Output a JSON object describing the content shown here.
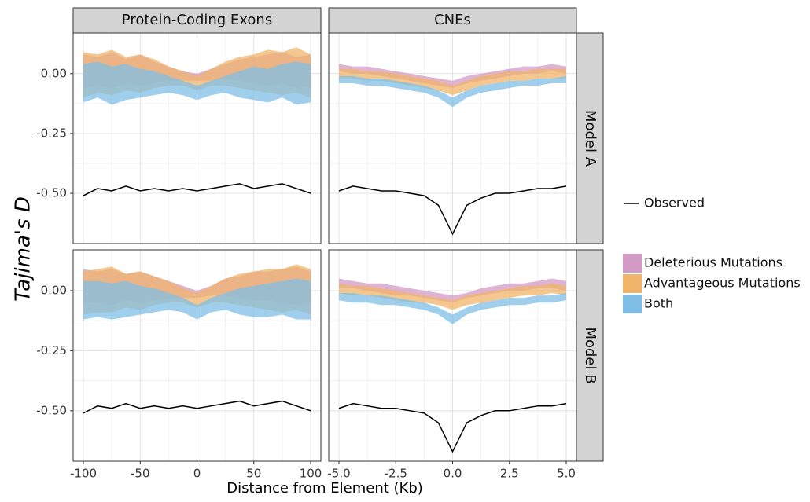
{
  "y_label": "Tajima's D",
  "x_label": "Distance from Element (Kb)",
  "facets": {
    "columns": [
      "Protein-Coding Exons",
      "CNEs"
    ],
    "rows": [
      "Model A",
      "Model B"
    ]
  },
  "legend": {
    "line": {
      "name": "Observed",
      "color": "#000000"
    },
    "fills": [
      {
        "name": "Deleterious Mutations",
        "color": "#d39ac6"
      },
      {
        "name": "Advantageous Mutations",
        "color": "#f0b46a"
      },
      {
        "name": "Both",
        "color": "#7fbfe6"
      }
    ]
  },
  "chart_data": [
    {
      "type": "area",
      "x": [
        -100,
        -87.5,
        -75,
        -62.5,
        -50,
        -37.5,
        -25,
        -12.5,
        0,
        12.5,
        25,
        37.5,
        50,
        62.5,
        75,
        87.5,
        100
      ],
      "xlim": [
        -109,
        109
      ],
      "ylim": [
        -0.71,
        0.17
      ],
      "xticks": [
        -100,
        -50,
        0,
        50,
        100
      ],
      "yticks": [
        {
          "value": 0,
          "label": "0.00"
        },
        {
          "value": -0.25,
          "label": "-0.25"
        },
        {
          "value": -0.5,
          "label": "-0.50"
        }
      ],
      "series": [
        {
          "color": "#d39ac6",
          "upper": [
            0.08,
            0.07,
            0.09,
            0.06,
            0.08,
            0.05,
            0.03,
            0.01,
            0.0,
            0.02,
            0.04,
            0.06,
            0.07,
            0.08,
            0.09,
            0.07,
            0.08
          ],
          "lower": [
            -0.06,
            -0.05,
            -0.06,
            -0.04,
            -0.05,
            -0.04,
            -0.03,
            -0.03,
            -0.03,
            -0.03,
            -0.02,
            -0.03,
            -0.04,
            -0.05,
            -0.04,
            -0.06,
            -0.05
          ]
        },
        {
          "color": "#f0b46a",
          "upper": [
            0.09,
            0.08,
            0.1,
            0.07,
            0.08,
            0.06,
            0.03,
            0.01,
            -0.01,
            0.02,
            0.05,
            0.07,
            0.08,
            0.1,
            0.09,
            0.11,
            0.08
          ],
          "lower": [
            -0.1,
            -0.08,
            -0.09,
            -0.07,
            -0.08,
            -0.06,
            -0.05,
            -0.05,
            -0.07,
            -0.05,
            -0.05,
            -0.06,
            -0.07,
            -0.08,
            -0.09,
            -0.08,
            -0.1
          ]
        },
        {
          "color": "#7fbfe6",
          "upper": [
            0.04,
            0.05,
            0.03,
            0.04,
            0.02,
            0.01,
            -0.01,
            -0.03,
            -0.05,
            -0.03,
            -0.01,
            0.01,
            0.03,
            0.02,
            0.04,
            0.05,
            0.04
          ],
          "lower": [
            -0.12,
            -0.1,
            -0.13,
            -0.11,
            -0.1,
            -0.09,
            -0.08,
            -0.09,
            -0.11,
            -0.09,
            -0.08,
            -0.1,
            -0.11,
            -0.12,
            -0.1,
            -0.13,
            -0.12
          ]
        }
      ],
      "observed": [
        -0.51,
        -0.48,
        -0.49,
        -0.47,
        -0.49,
        -0.48,
        -0.49,
        -0.48,
        -0.49,
        -0.48,
        -0.47,
        -0.46,
        -0.48,
        -0.47,
        -0.46,
        -0.48,
        -0.5
      ]
    },
    {
      "type": "area",
      "x": [
        -5,
        -4.375,
        -3.75,
        -3.125,
        -2.5,
        -1.875,
        -1.25,
        -0.625,
        0,
        0.625,
        1.25,
        1.875,
        2.5,
        3.125,
        3.75,
        4.375,
        5
      ],
      "xlim": [
        -5.45,
        5.45
      ],
      "ylim": [
        -0.71,
        0.17
      ],
      "xticks": [
        {
          "value": -5,
          "label": "-5.0"
        },
        {
          "value": -2.5,
          "label": "-2.5"
        },
        {
          "value": 0,
          "label": "0.0"
        },
        {
          "value": 2.5,
          "label": "2.5"
        },
        {
          "value": 5,
          "label": "5.0"
        }
      ],
      "yticks": [
        {
          "value": 0,
          "label": "0.00"
        },
        {
          "value": -0.25,
          "label": "-0.25"
        },
        {
          "value": -0.5,
          "label": "-0.50"
        }
      ],
      "series": [
        {
          "color": "#d39ac6",
          "upper": [
            0.04,
            0.03,
            0.03,
            0.02,
            0.01,
            0.0,
            -0.01,
            -0.02,
            -0.03,
            -0.01,
            0.0,
            0.01,
            0.02,
            0.03,
            0.03,
            0.04,
            0.03
          ],
          "lower": [
            0.01,
            0.0,
            0.0,
            -0.01,
            -0.02,
            -0.03,
            -0.04,
            -0.05,
            -0.06,
            -0.04,
            -0.03,
            -0.02,
            -0.01,
            0.0,
            0.0,
            0.01,
            0.0
          ]
        },
        {
          "color": "#f0b46a",
          "upper": [
            0.02,
            0.02,
            0.01,
            0.01,
            0.0,
            -0.01,
            -0.02,
            -0.03,
            -0.05,
            -0.03,
            -0.01,
            0.0,
            0.01,
            0.01,
            0.02,
            0.02,
            0.02
          ],
          "lower": [
            -0.02,
            -0.02,
            -0.03,
            -0.03,
            -0.04,
            -0.05,
            -0.06,
            -0.07,
            -0.09,
            -0.07,
            -0.05,
            -0.04,
            -0.03,
            -0.03,
            -0.02,
            -0.02,
            -0.02
          ]
        },
        {
          "color": "#7fbfe6",
          "upper": [
            -0.01,
            -0.01,
            -0.02,
            -0.02,
            -0.03,
            -0.04,
            -0.05,
            -0.07,
            -0.1,
            -0.07,
            -0.05,
            -0.04,
            -0.03,
            -0.03,
            -0.02,
            -0.02,
            -0.01
          ],
          "lower": [
            -0.04,
            -0.04,
            -0.05,
            -0.05,
            -0.06,
            -0.07,
            -0.08,
            -0.1,
            -0.14,
            -0.1,
            -0.08,
            -0.07,
            -0.06,
            -0.05,
            -0.05,
            -0.04,
            -0.04
          ]
        }
      ],
      "observed": [
        -0.49,
        -0.47,
        -0.48,
        -0.49,
        -0.49,
        -0.5,
        -0.51,
        -0.55,
        -0.67,
        -0.55,
        -0.52,
        -0.5,
        -0.5,
        -0.49,
        -0.48,
        -0.48,
        -0.47
      ]
    },
    {
      "type": "area",
      "x": [
        -100,
        -87.5,
        -75,
        -62.5,
        -50,
        -37.5,
        -25,
        -12.5,
        0,
        12.5,
        25,
        37.5,
        50,
        62.5,
        75,
        87.5,
        100
      ],
      "xlim": [
        -109,
        109
      ],
      "ylim": [
        -0.71,
        0.17
      ],
      "xticks": [
        -100,
        -50,
        0,
        50,
        100
      ],
      "yticks": [
        {
          "value": 0,
          "label": "0.00"
        },
        {
          "value": -0.25,
          "label": "-0.25"
        },
        {
          "value": -0.5,
          "label": "-0.50"
        }
      ],
      "series": [
        {
          "color": "#d39ac6",
          "upper": [
            0.09,
            0.08,
            0.09,
            0.07,
            0.08,
            0.06,
            0.04,
            0.02,
            0.0,
            0.02,
            0.05,
            0.06,
            0.08,
            0.08,
            0.09,
            0.1,
            0.08
          ],
          "lower": [
            -0.05,
            -0.05,
            -0.06,
            -0.04,
            -0.05,
            -0.04,
            -0.03,
            -0.03,
            -0.03,
            -0.02,
            -0.02,
            -0.03,
            -0.04,
            -0.04,
            -0.05,
            -0.06,
            -0.05
          ]
        },
        {
          "color": "#f0b46a",
          "upper": [
            0.08,
            0.09,
            0.1,
            0.07,
            0.08,
            0.06,
            0.04,
            0.01,
            -0.01,
            0.02,
            0.05,
            0.07,
            0.08,
            0.09,
            0.09,
            0.11,
            0.09
          ],
          "lower": [
            -0.1,
            -0.09,
            -0.09,
            -0.07,
            -0.08,
            -0.06,
            -0.05,
            -0.05,
            -0.07,
            -0.05,
            -0.05,
            -0.06,
            -0.07,
            -0.08,
            -0.09,
            -0.08,
            -0.1
          ]
        },
        {
          "color": "#7fbfe6",
          "upper": [
            0.04,
            0.04,
            0.03,
            0.04,
            0.02,
            0.01,
            -0.01,
            -0.03,
            -0.06,
            -0.03,
            -0.01,
            0.01,
            0.02,
            0.03,
            0.04,
            0.05,
            0.04
          ],
          "lower": [
            -0.12,
            -0.11,
            -0.12,
            -0.11,
            -0.1,
            -0.09,
            -0.08,
            -0.09,
            -0.12,
            -0.09,
            -0.08,
            -0.1,
            -0.11,
            -0.11,
            -0.1,
            -0.12,
            -0.12
          ]
        }
      ],
      "observed": [
        -0.51,
        -0.48,
        -0.49,
        -0.47,
        -0.49,
        -0.48,
        -0.49,
        -0.48,
        -0.49,
        -0.48,
        -0.47,
        -0.46,
        -0.48,
        -0.47,
        -0.46,
        -0.48,
        -0.5
      ]
    },
    {
      "type": "area",
      "x": [
        -5,
        -4.375,
        -3.75,
        -3.125,
        -2.5,
        -1.875,
        -1.25,
        -0.625,
        0,
        0.625,
        1.25,
        1.875,
        2.5,
        3.125,
        3.75,
        4.375,
        5
      ],
      "xlim": [
        -5.45,
        5.45
      ],
      "ylim": [
        -0.71,
        0.17
      ],
      "xticks": [
        {
          "value": -5,
          "label": "-5.0"
        },
        {
          "value": -2.5,
          "label": "-2.5"
        },
        {
          "value": 0,
          "label": "0.0"
        },
        {
          "value": 2.5,
          "label": "2.5"
        },
        {
          "value": 5,
          "label": "5.0"
        }
      ],
      "yticks": [
        {
          "value": 0,
          "label": "0.00"
        },
        {
          "value": -0.25,
          "label": "-0.25"
        },
        {
          "value": -0.5,
          "label": "-0.50"
        }
      ],
      "series": [
        {
          "color": "#d39ac6",
          "upper": [
            0.05,
            0.04,
            0.03,
            0.03,
            0.02,
            0.01,
            0.0,
            -0.01,
            -0.02,
            -0.01,
            0.01,
            0.02,
            0.03,
            0.03,
            0.04,
            0.05,
            0.04
          ],
          "lower": [
            0.01,
            0.01,
            0.0,
            -0.01,
            -0.02,
            -0.02,
            -0.03,
            -0.04,
            -0.05,
            -0.03,
            -0.02,
            -0.01,
            0.0,
            0.0,
            0.01,
            0.01,
            0.0
          ]
        },
        {
          "color": "#f0b46a",
          "upper": [
            0.03,
            0.02,
            0.02,
            0.01,
            0.0,
            -0.01,
            -0.02,
            -0.03,
            -0.04,
            -0.02,
            -0.01,
            0.0,
            0.01,
            0.02,
            0.02,
            0.03,
            0.02
          ],
          "lower": [
            -0.01,
            -0.02,
            -0.02,
            -0.03,
            -0.04,
            -0.05,
            -0.05,
            -0.06,
            -0.08,
            -0.06,
            -0.05,
            -0.04,
            -0.03,
            -0.02,
            -0.02,
            -0.01,
            -0.02
          ]
        },
        {
          "color": "#7fbfe6",
          "upper": [
            -0.01,
            -0.01,
            -0.02,
            -0.02,
            -0.03,
            -0.04,
            -0.05,
            -0.07,
            -0.1,
            -0.07,
            -0.05,
            -0.04,
            -0.03,
            -0.03,
            -0.02,
            -0.02,
            -0.01
          ],
          "lower": [
            -0.04,
            -0.05,
            -0.05,
            -0.06,
            -0.06,
            -0.07,
            -0.08,
            -0.1,
            -0.14,
            -0.1,
            -0.08,
            -0.07,
            -0.06,
            -0.06,
            -0.05,
            -0.05,
            -0.04
          ]
        }
      ],
      "observed": [
        -0.49,
        -0.47,
        -0.48,
        -0.49,
        -0.49,
        -0.5,
        -0.51,
        -0.55,
        -0.67,
        -0.55,
        -0.52,
        -0.5,
        -0.5,
        -0.49,
        -0.48,
        -0.48,
        -0.47
      ]
    }
  ]
}
